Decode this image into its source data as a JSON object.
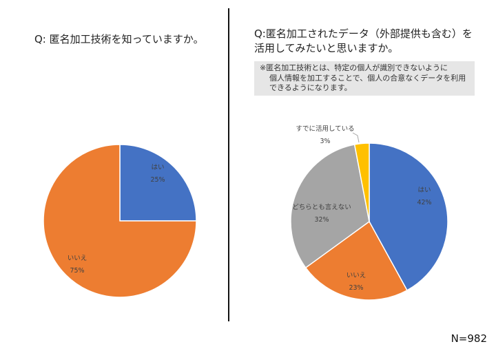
{
  "header": {
    "sample_size_label": "N=982"
  },
  "note_text": {
    "line1": "※匿名加工技術とは、特定の個人が識別できないように",
    "line2": "個人情報を加工することで、個人の合意なくデータを利用できるようになります。"
  },
  "chart_data": [
    {
      "type": "pie",
      "title": "Q: 匿名加工技術を知っていますか。",
      "slices": [
        {
          "label": "はい",
          "value": 25,
          "value_label": "25%",
          "color": "#4472c4"
        },
        {
          "label": "いいえ",
          "value": 75,
          "value_label": "75%",
          "color": "#ed7d31"
        }
      ]
    },
    {
      "type": "pie",
      "title_lines": [
        "Q:匿名加工されたデータ（外部提供も含む）を",
        "活用してみたいと思いますか。"
      ],
      "slices": [
        {
          "label": "はい",
          "value": 42,
          "value_label": "42%",
          "color": "#4472c4"
        },
        {
          "label": "いいえ",
          "value": 23,
          "value_label": "23%",
          "color": "#ed7d31"
        },
        {
          "label": "どちらとも言えない",
          "value": 32,
          "value_label": "32%",
          "color": "#a5a5a5"
        },
        {
          "label": "すでに活用している",
          "value": 3,
          "value_label": "3%",
          "color": "#ffc000"
        }
      ]
    }
  ]
}
